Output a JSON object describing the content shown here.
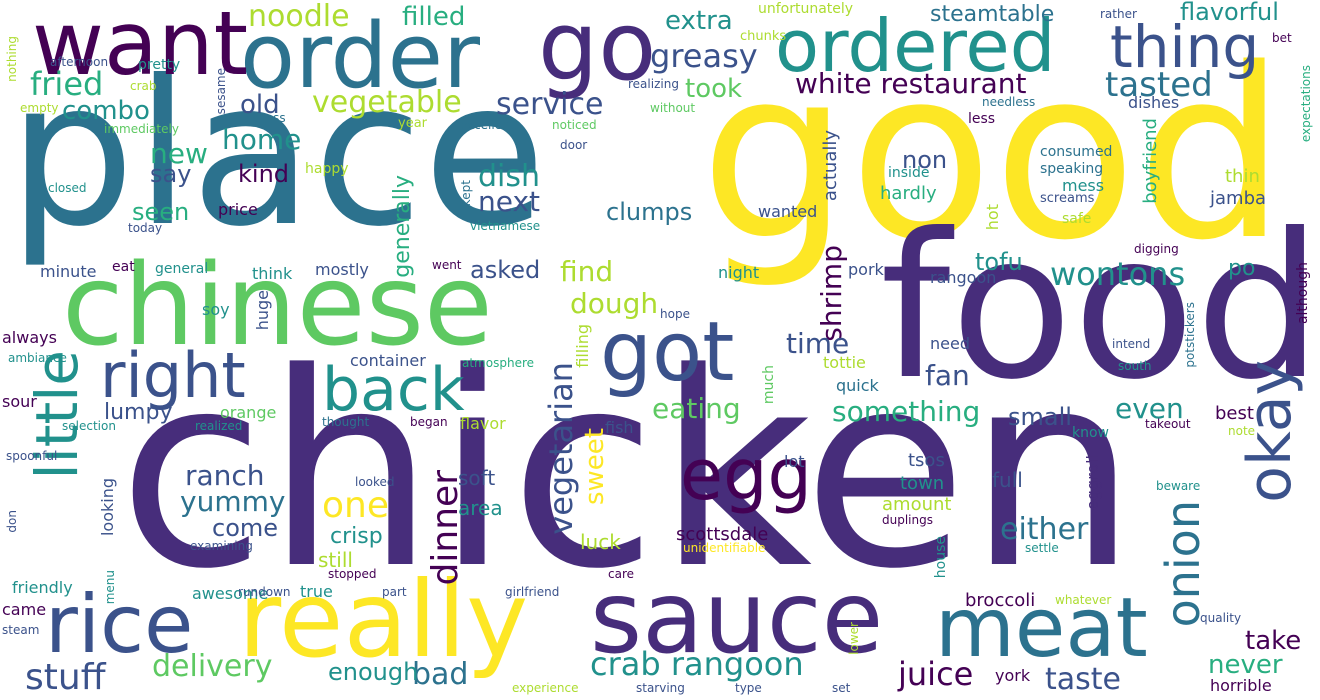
{
  "palette": {
    "dark_purple": "#440154",
    "indigo": "#472d7b",
    "slate_blue": "#3b528b",
    "steel_blue": "#2c728e",
    "teal": "#21918c",
    "green_teal": "#28ae80",
    "green": "#5ec962",
    "lime": "#addc30",
    "yellow": "#fde725",
    "background": "#ffffff"
  },
  "words": [
    "chicken",
    "good",
    "place",
    "food",
    "chinese",
    "order",
    "really",
    "sauce",
    "meat",
    "go",
    "want",
    "ordered",
    "got",
    "rice",
    "back",
    "egg",
    "right",
    "thing",
    "little",
    "okay",
    "onion",
    "crab rangoon",
    "white restaurant",
    "tasted",
    "vegetable",
    "fried",
    "greasy",
    "service",
    "stuff",
    "one",
    "dinner",
    "delivery",
    "vegetarian",
    "wontons",
    "taste",
    "juice",
    "either",
    "eating",
    "shrimp",
    "flavorful",
    "noodle",
    "filled",
    "extra",
    "steamtable",
    "took",
    "combo",
    "old",
    "dish",
    "next",
    "clumps",
    "home",
    "new",
    "say",
    "kind",
    "seen",
    "find",
    "dough",
    "something",
    "fan",
    "time",
    "tofu",
    "non",
    "even",
    "ranch",
    "yummy",
    "come",
    "lumpy",
    "bad",
    "enough",
    "never",
    "take",
    "sweet",
    "small",
    "generally",
    "asked",
    "crisp",
    "soft",
    "area",
    "still",
    "luck",
    "scottsdale",
    "full",
    "amount",
    "town",
    "tsos",
    "broccoli",
    "best",
    "po",
    "jamba",
    "thin",
    "boyfriend",
    "mess",
    "speaking",
    "consumed",
    "screams",
    "safe",
    "inside",
    "hardly",
    "actually",
    "wanted",
    "pork",
    "rangoon",
    "hot",
    "night",
    "quick",
    "tottie",
    "need",
    "know",
    "eggroll",
    "hope",
    "much",
    "lot",
    "york",
    "horrible",
    "mostly",
    "price",
    "think",
    "minute",
    "eat",
    "general",
    "soy",
    "huge",
    "always",
    "sour",
    "orange",
    "friendly",
    "came",
    "awesome",
    "true",
    "flavor",
    "fish",
    "filling",
    "container",
    "atmosphere",
    "realized",
    "selection",
    "spoonful",
    "ambiance",
    "thought",
    "began",
    "looked",
    "looking",
    "examining",
    "menu",
    "stopped",
    "rundown",
    "part",
    "girlfriend",
    "care",
    "unidentifiable",
    "duplings",
    "house",
    "settle",
    "whatever",
    "quality",
    "note",
    "takeout",
    "beware",
    "south",
    "intend",
    "potstickers",
    "although",
    "expectations",
    "bet",
    "rather",
    "unfortunately",
    "chunks",
    "sesame",
    "sickness",
    "immediately",
    "crab",
    "pretty",
    "afternoon",
    "nothing",
    "empty",
    "closed",
    "today",
    "happy",
    "year",
    "excellent",
    "noticed",
    "door",
    "without",
    "realizing",
    "kept",
    "vietnamese",
    "went",
    "needless",
    "less",
    "dishes",
    "digging",
    "experience",
    "starving",
    "type",
    "set",
    "lower",
    "don",
    "steam"
  ]
}
